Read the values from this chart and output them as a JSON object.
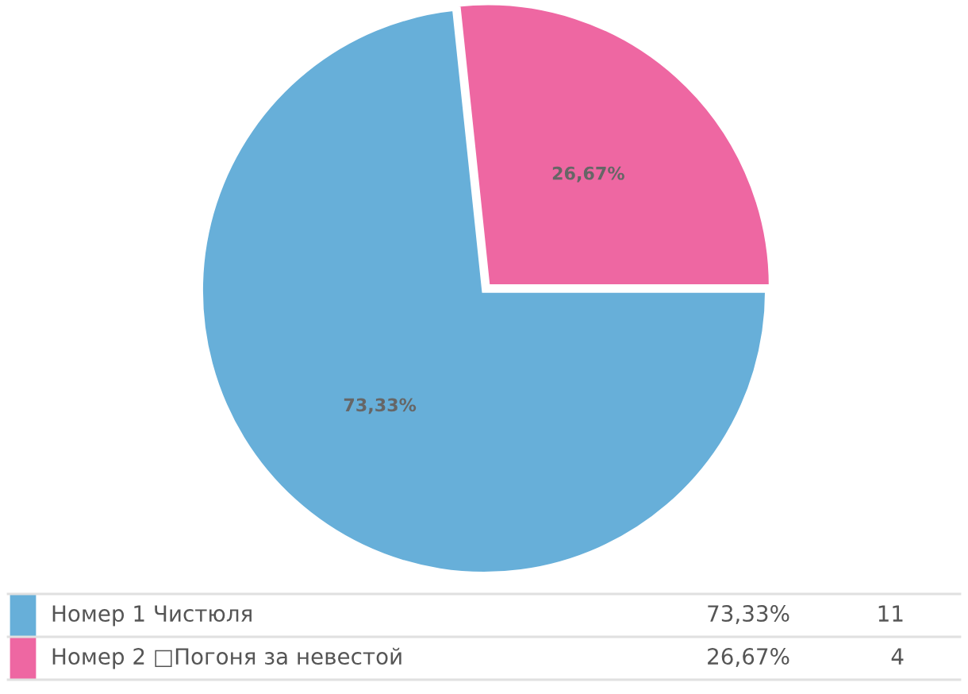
{
  "chart_data": {
    "type": "pie",
    "categories": [
      "Номер 1 Чистюля",
      "Номер 2 □Погоня за невестой"
    ],
    "values": [
      73.33,
      26.67
    ],
    "annotations": [
      "11",
      "4"
    ],
    "colors": [
      "#67afd9",
      "#ee67a2"
    ],
    "value_labels": [
      "73,33%",
      "26,67%"
    ],
    "legend": "bottom"
  }
}
